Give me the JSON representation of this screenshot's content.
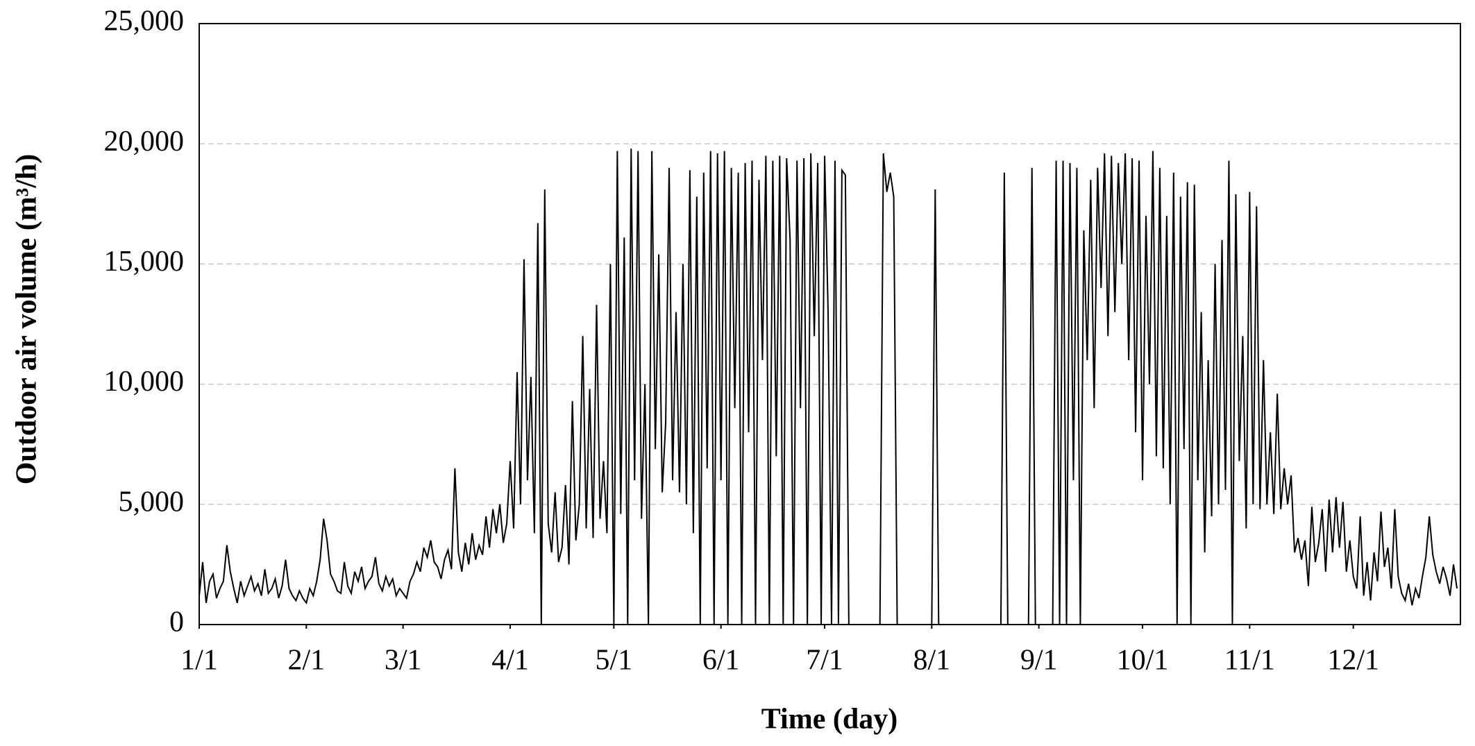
{
  "chart_data": {
    "type": "line",
    "xlabel": "Time (day)",
    "ylabel": "Outdoor air volume (m³/h)",
    "color": "#000000",
    "grid": true,
    "xlim": [
      0,
      365
    ],
    "xticks": [
      {
        "value": 0,
        "label": "1/1"
      },
      {
        "value": 31,
        "label": "2/1"
      },
      {
        "value": 59,
        "label": "3/1"
      },
      {
        "value": 90,
        "label": "4/1"
      },
      {
        "value": 120,
        "label": "5/1"
      },
      {
        "value": 151,
        "label": "6/1"
      },
      {
        "value": 181,
        "label": "7/1"
      },
      {
        "value": 212,
        "label": "8/1"
      },
      {
        "value": 243,
        "label": "9/1"
      },
      {
        "value": 273,
        "label": "10/1"
      },
      {
        "value": 304,
        "label": "11/1"
      },
      {
        "value": 334,
        "label": "12/1"
      }
    ],
    "ylim": [
      0,
      25000
    ],
    "yticks": [
      0,
      {
        "value": 5000,
        "label": "5,000"
      },
      {
        "value": 10000,
        "label": "10,000"
      },
      {
        "value": 15000,
        "label": "15,000"
      },
      {
        "value": 20000,
        "label": "20,000"
      },
      {
        "value": 25000,
        "label": "25,000"
      }
    ],
    "x": [
      0,
      1,
      2,
      3,
      4,
      5,
      6,
      7,
      8,
      9,
      10,
      11,
      12,
      13,
      14,
      15,
      16,
      17,
      18,
      19,
      20,
      21,
      22,
      23,
      24,
      25,
      26,
      27,
      28,
      29,
      30,
      31,
      32,
      33,
      34,
      35,
      36,
      37,
      38,
      39,
      40,
      41,
      42,
      43,
      44,
      45,
      46,
      47,
      48,
      49,
      50,
      51,
      52,
      53,
      54,
      55,
      56,
      57,
      58,
      59,
      60,
      61,
      62,
      63,
      64,
      65,
      66,
      67,
      68,
      69,
      70,
      71,
      72,
      73,
      74,
      75,
      76,
      77,
      78,
      79,
      80,
      81,
      82,
      83,
      84,
      85,
      86,
      87,
      88,
      89,
      90,
      91,
      92,
      93,
      94,
      95,
      96,
      97,
      98,
      99,
      100,
      101,
      102,
      103,
      104,
      105,
      106,
      107,
      108,
      109,
      110,
      111,
      112,
      113,
      114,
      115,
      116,
      117,
      118,
      119,
      120,
      121,
      122,
      123,
      124,
      125,
      126,
      127,
      128,
      129,
      130,
      131,
      132,
      133,
      134,
      135,
      136,
      137,
      138,
      139,
      140,
      141,
      142,
      143,
      144,
      145,
      146,
      147,
      148,
      149,
      150,
      151,
      152,
      153,
      154,
      155,
      156,
      157,
      158,
      159,
      160,
      161,
      162,
      163,
      164,
      165,
      166,
      167,
      168,
      169,
      170,
      171,
      172,
      173,
      174,
      175,
      176,
      177,
      178,
      179,
      180,
      181,
      182,
      183,
      184,
      185,
      186,
      187,
      188,
      189,
      190,
      191,
      192,
      193,
      194,
      195,
      196,
      197,
      198,
      199,
      200,
      201,
      202,
      203,
      204,
      205,
      206,
      207,
      208,
      209,
      210,
      211,
      212,
      213,
      214,
      215,
      216,
      217,
      218,
      219,
      220,
      221,
      222,
      223,
      224,
      225,
      226,
      227,
      228,
      229,
      230,
      231,
      232,
      233,
      234,
      235,
      236,
      237,
      238,
      239,
      240,
      241,
      242,
      243,
      244,
      245,
      246,
      247,
      248,
      249,
      250,
      251,
      252,
      253,
      254,
      255,
      256,
      257,
      258,
      259,
      260,
      261,
      262,
      263,
      264,
      265,
      266,
      267,
      268,
      269,
      270,
      271,
      272,
      273,
      274,
      275,
      276,
      277,
      278,
      279,
      280,
      281,
      282,
      283,
      284,
      285,
      286,
      287,
      288,
      289,
      290,
      291,
      292,
      293,
      294,
      295,
      296,
      297,
      298,
      299,
      300,
      301,
      302,
      303,
      304,
      305,
      306,
      307,
      308,
      309,
      310,
      311,
      312,
      313,
      314,
      315,
      316,
      317,
      318,
      319,
      320,
      321,
      322,
      323,
      324,
      325,
      326,
      327,
      328,
      329,
      330,
      331,
      332,
      333,
      334,
      335,
      336,
      337,
      338,
      339,
      340,
      341,
      342,
      343,
      344,
      345,
      346,
      347,
      348,
      349,
      350,
      351,
      352,
      353,
      354,
      355,
      356,
      357,
      358,
      359,
      360,
      361,
      362,
      363,
      364
    ],
    "values": [
      1200,
      2600,
      900,
      1800,
      2100,
      1100,
      1500,
      1800,
      3300,
      2200,
      1500,
      900,
      1800,
      1200,
      1600,
      2000,
      1400,
      1700,
      1200,
      2300,
      1300,
      1500,
      1900,
      1100,
      1600,
      2700,
      1500,
      1200,
      1000,
      1400,
      1100,
      900,
      1500,
      1200,
      1800,
      2700,
      4400,
      3500,
      2100,
      1800,
      1400,
      1300,
      2600,
      1600,
      1300,
      2200,
      1800,
      2400,
      1500,
      1800,
      2000,
      2800,
      1700,
      1400,
      2000,
      1600,
      1900,
      1200,
      1500,
      1300,
      1100,
      1800,
      2100,
      2600,
      2200,
      3200,
      2800,
      3500,
      2600,
      2400,
      1900,
      2700,
      3100,
      2300,
      6500,
      3000,
      2200,
      3400,
      2500,
      3800,
      2700,
      3300,
      2900,
      4500,
      3200,
      4800,
      3800,
      5000,
      3400,
      4200,
      6800,
      4000,
      10500,
      5000,
      15200,
      6000,
      10300,
      3800,
      16700,
      0,
      18100,
      4200,
      3000,
      5500,
      2600,
      3200,
      5800,
      2500,
      9300,
      3500,
      5000,
      12000,
      4000,
      9800,
      3600,
      13300,
      4400,
      6800,
      3800,
      15000,
      0,
      19700,
      4600,
      16100,
      0,
      19800,
      6000,
      19700,
      4400,
      10000,
      0,
      19700,
      7300,
      15400,
      5500,
      8400,
      19000,
      6000,
      13000,
      5500,
      15000,
      5000,
      18900,
      3800,
      17800,
      0,
      18800,
      6500,
      19700,
      0,
      19600,
      6000,
      19700,
      0,
      19000,
      9000,
      18800,
      0,
      19200,
      8000,
      19300,
      0,
      18500,
      11000,
      19500,
      0,
      19300,
      7000,
      19500,
      0,
      19400,
      16000,
      0,
      19300,
      9000,
      19400,
      0,
      19600,
      12000,
      19200,
      0,
      19500,
      13000,
      0,
      19300,
      0,
      18900,
      18700,
      0,
      0,
      0,
      0,
      0,
      0,
      0,
      0,
      0,
      0,
      19600,
      18000,
      18800,
      17800,
      0,
      0,
      0,
      0,
      0,
      0,
      0,
      0,
      0,
      0,
      0,
      18100,
      0,
      0,
      0,
      0,
      0,
      0,
      0,
      0,
      0,
      0,
      0,
      0,
      0,
      0,
      0,
      0,
      0,
      0,
      0,
      18800,
      0,
      0,
      0,
      0,
      0,
      0,
      0,
      19000,
      0,
      0,
      0,
      0,
      0,
      0,
      19300,
      0,
      19300,
      0,
      19200,
      6000,
      19000,
      0,
      16400,
      11000,
      18500,
      9000,
      19000,
      14000,
      19600,
      12000,
      19500,
      13000,
      19200,
      15000,
      19600,
      11000,
      19400,
      8000,
      19300,
      6000,
      17000,
      10000,
      19700,
      7000,
      19000,
      6500,
      17000,
      5000,
      18800,
      0,
      17800,
      7300,
      18400,
      0,
      18300,
      6000,
      13000,
      3000,
      11000,
      4500,
      15000,
      5000,
      16000,
      5600,
      19300,
      0,
      17900,
      6800,
      12000,
      4000,
      18000,
      5000,
      17400,
      4800,
      11000,
      5000,
      8000,
      4600,
      9600,
      4800,
      6500,
      5000,
      6200,
      3000,
      3600,
      2700,
      3500,
      1600,
      4900,
      2600,
      3400,
      4800,
      2200,
      5200,
      3000,
      5300,
      3200,
      5100,
      2200,
      3500,
      2000,
      1500,
      4500,
      1200,
      2600,
      1000,
      3000,
      1800,
      4700,
      2400,
      3200,
      1500,
      4800,
      2000,
      1300,
      1000,
      1700,
      800,
      1500,
      1100,
      2000,
      2800,
      4500,
      2900,
      2200,
      1700,
      2400,
      1900,
      1200,
      2500,
      1500
    ]
  }
}
